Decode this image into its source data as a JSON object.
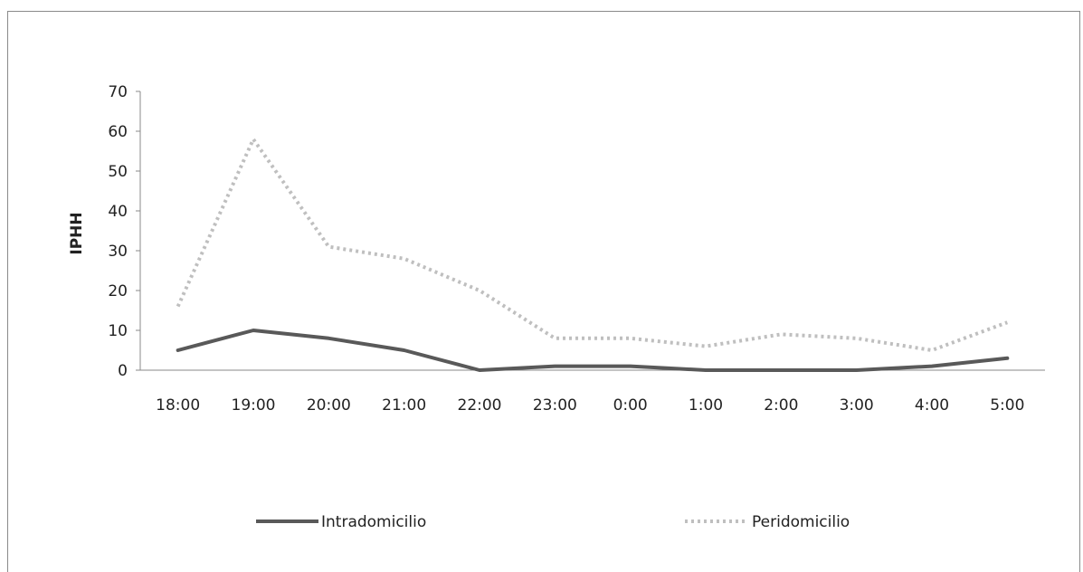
{
  "chart_data": {
    "type": "line",
    "title": "",
    "xlabel": "",
    "ylabel": "IPHH",
    "ylim": [
      0,
      70
    ],
    "yticks": [
      0,
      10,
      20,
      30,
      40,
      50,
      60,
      70
    ],
    "categories": [
      "18:00",
      "19:00",
      "20:00",
      "21:00",
      "22:00",
      "23:00",
      "0:00",
      "1:00",
      "2:00",
      "3:00",
      "4:00",
      "5:00"
    ],
    "series": [
      {
        "name": "Intradomicilio",
        "color": "#595959",
        "style": "solid",
        "values": [
          5,
          10,
          8,
          5,
          0,
          1,
          1,
          0,
          0,
          0,
          1,
          3
        ]
      },
      {
        "name": "Peridomicilio",
        "color": "#bfbfbf",
        "style": "dotted",
        "values": [
          16,
          58,
          31,
          28,
          20,
          8,
          8,
          6,
          9,
          8,
          5,
          12
        ]
      }
    ],
    "grid": false,
    "legend_position": "bottom"
  }
}
